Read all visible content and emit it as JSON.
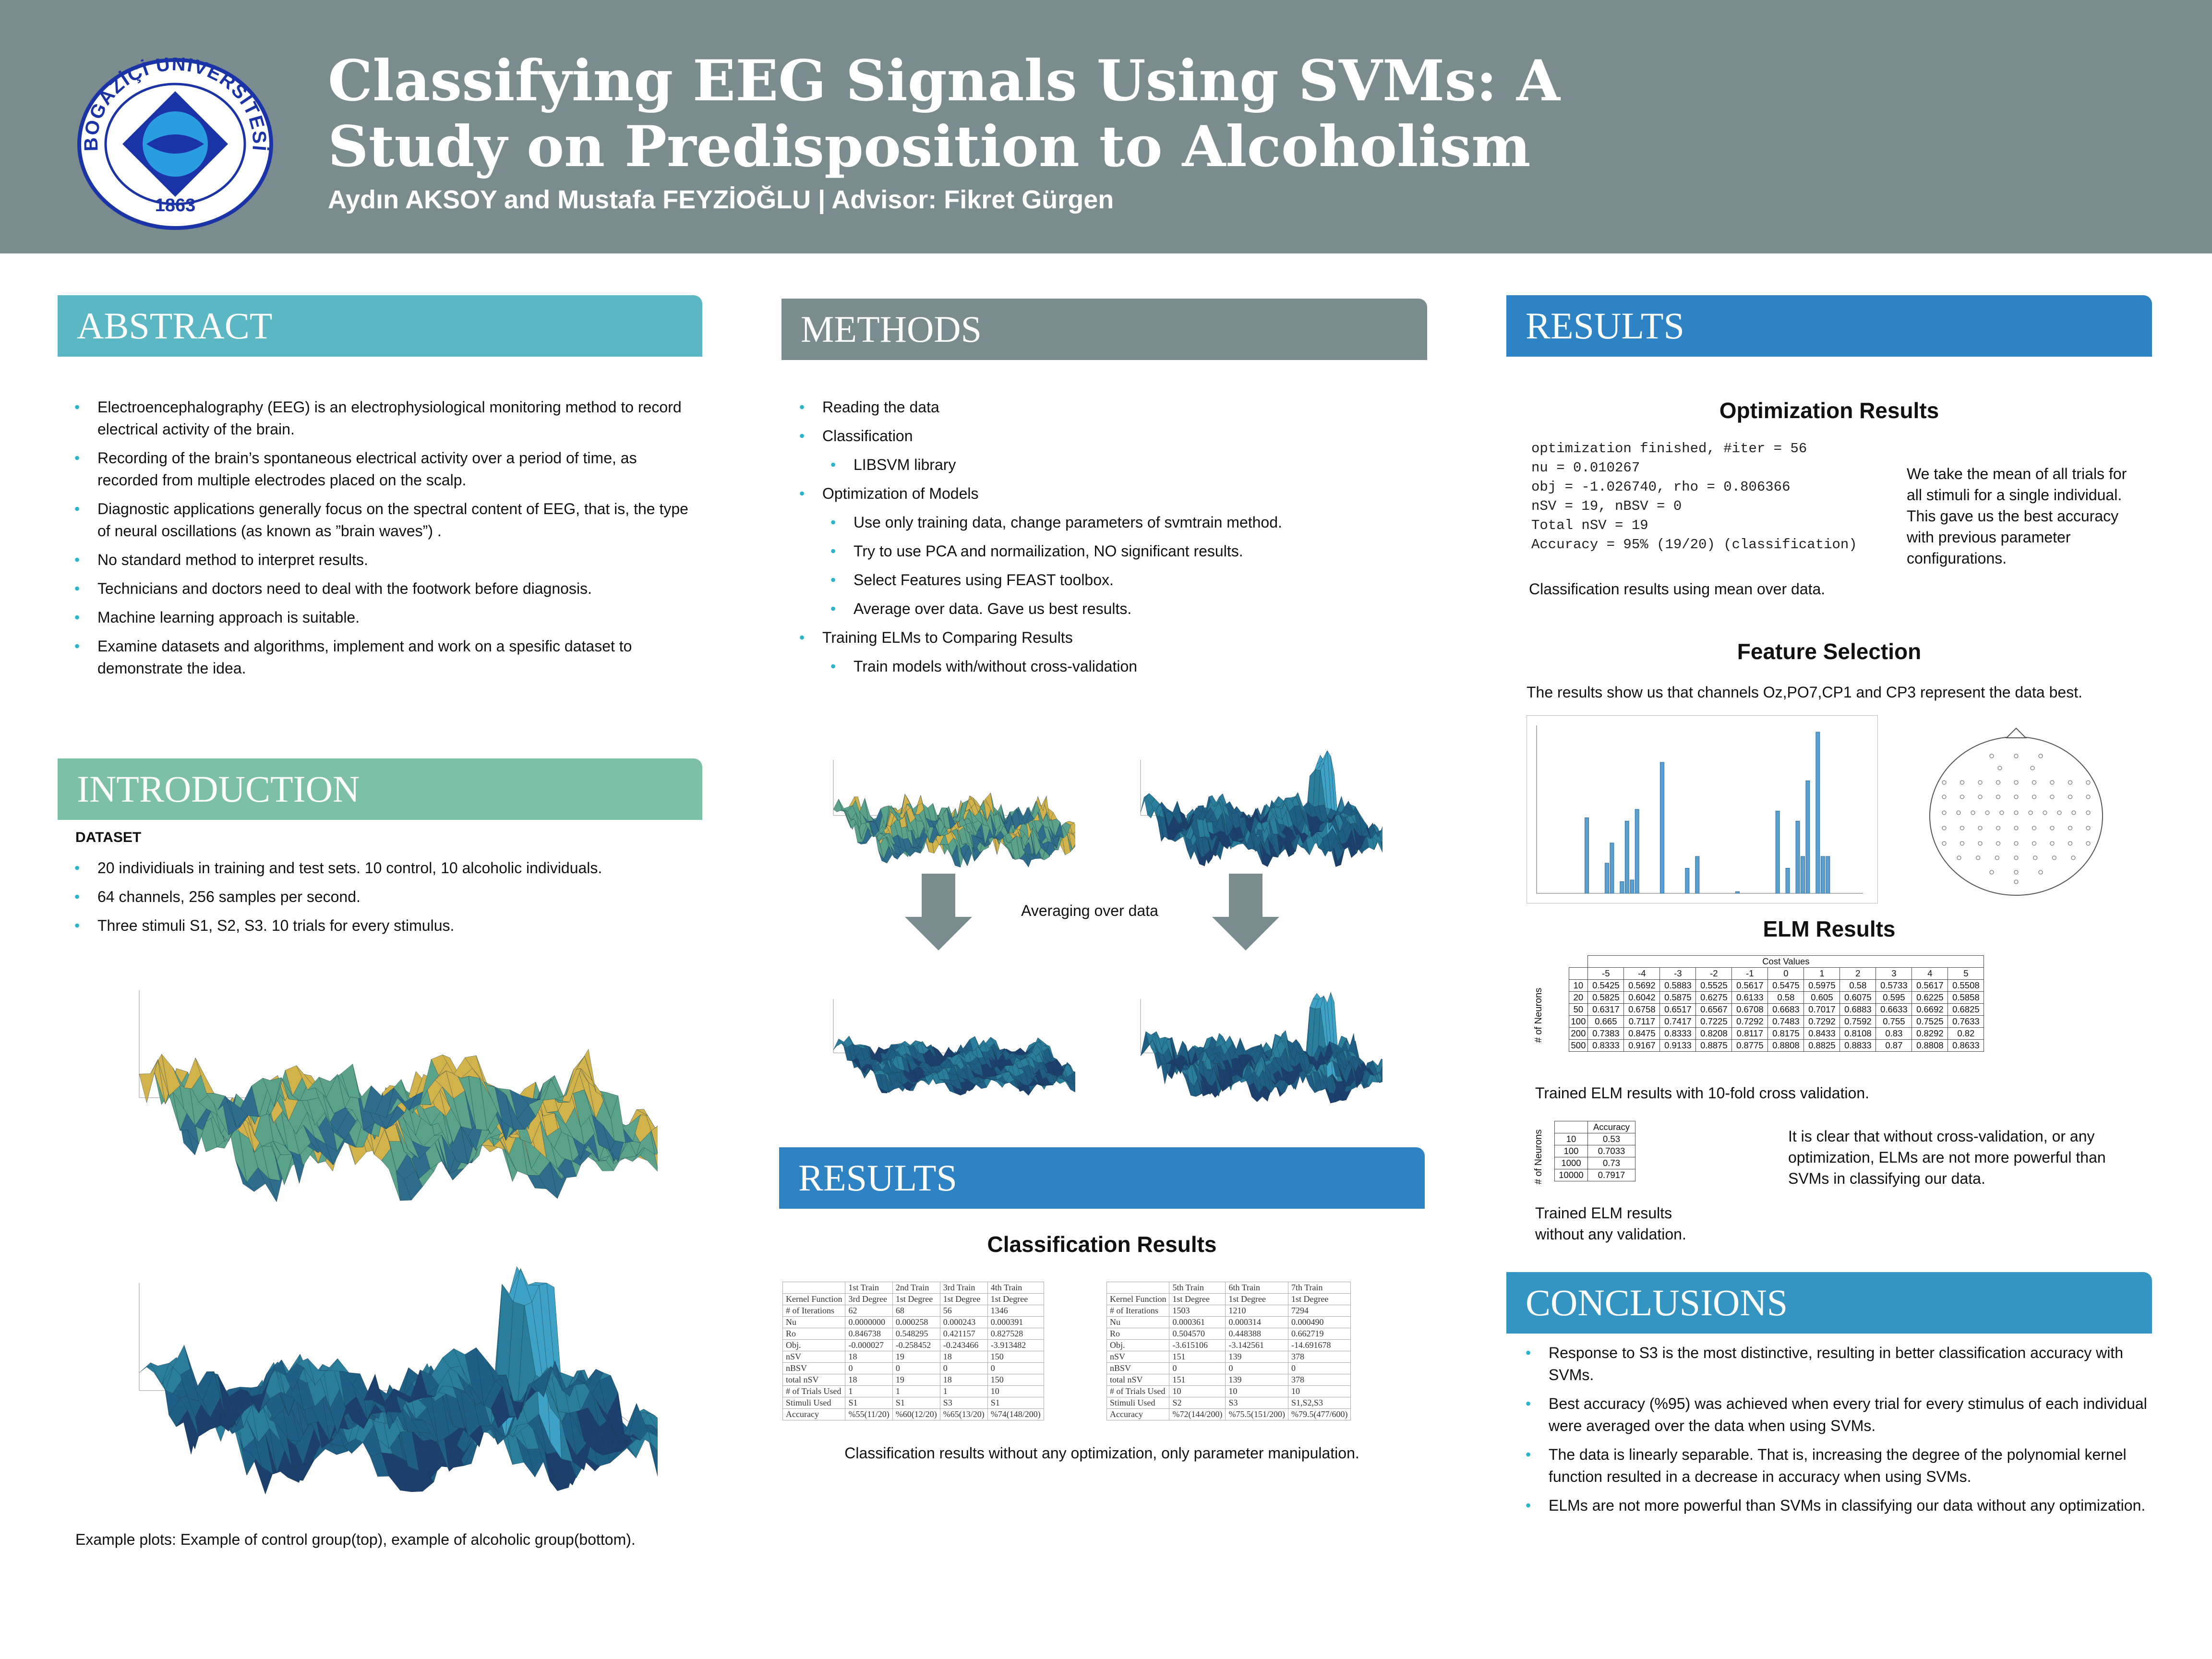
{
  "header": {
    "title": "Classifying EEG Signals Using SVMs: A Study on Predisposition to Alcoholism",
    "authors": "Aydın AKSOY and Mustafa FEYZİOĞLU | Advisor: Fikret Gürgen",
    "logo": {
      "text": "BOĞAZİÇİ ÜNİVERSİTESİ",
      "year": "1863"
    }
  },
  "colors": {
    "header": "#7b8c8e",
    "abstract": "#5ab7c3",
    "introduction": "#7cc0a6",
    "methods": "#7b8c8e",
    "results": "#2e83c4",
    "conclusions": "#3595c2",
    "bar": "#5b9fce"
  },
  "abstract": {
    "heading": "ABSTRACT",
    "items": [
      "Electroencephalography (EEG) is an electrophysiological monitoring method to record electrical activity of the brain.",
      "Recording of the brain’s spontaneous electrical activity over a period of time, as recorded from multiple electrodes placed on the scalp.",
      "Diagnostic applications generally focus on the spectral content of EEG, that is, the type of neural oscillations (as known as ”brain waves”) .",
      "No standard method to interpret results.",
      "Technicians and doctors need to deal with the footwork before diagnosis.",
      "Machine learning approach is suitable.",
      "Examine datasets and algorithms, implement and work on a spesific dataset to demonstrate the idea."
    ]
  },
  "introduction": {
    "heading": "INTRODUCTION",
    "dataset_label": "DATASET",
    "items": [
      "20 individiuals in training and test sets. 10 control, 10 alcoholic individuals.",
      "64 channels, 256 samples per second.",
      "Three stimuli S1, S2, S3. 10 trials for every stimulus."
    ],
    "caption": "Example plots: Example of control group(top), example of alcoholic group(bottom)."
  },
  "methods": {
    "heading": "METHODS",
    "items": [
      {
        "text": "Reading the data",
        "sub": false
      },
      {
        "text": "Classification",
        "sub": false
      },
      {
        "text": "LIBSVM library",
        "sub": true
      },
      {
        "text": "Optimization of Models",
        "sub": false
      },
      {
        "text": "Use only training data, change parameters of svmtrain method.",
        "sub": true
      },
      {
        "text": "Try to use PCA and normailization, NO significant results.",
        "sub": true
      },
      {
        "text": "Select Features using FEAST toolbox.",
        "sub": true
      },
      {
        "text": "Average over data. Gave us best results.",
        "sub": true
      },
      {
        "text": "Training ELMs to Comparing Results",
        "sub": false
      },
      {
        "text": "Train models with/without cross-validation",
        "sub": true
      }
    ],
    "averaging_label": "Averaging over data"
  },
  "results_mid": {
    "heading": "RESULTS",
    "classification_title": "Classification Results",
    "classification_caption": "Classification results without any optimization, only parameter manipulation.",
    "table_left": [
      [
        "",
        "1st Train",
        "2nd Train",
        "3rd Train",
        "4th Train"
      ],
      [
        "Kernel Function",
        "3rd Degree",
        "1st Degree",
        "1st Degree",
        "1st Degree"
      ],
      [
        "# of Iterations",
        "62",
        "68",
        "56",
        "1346"
      ],
      [
        "Nu",
        "0.0000000",
        "0.000258",
        "0.000243",
        "0.000391"
      ],
      [
        "Ro",
        "0.846738",
        "0.548295",
        "0.421157",
        "0.827528"
      ],
      [
        "Obj.",
        "-0.000027",
        "-0.258452",
        "-0.243466",
        "-3.913482"
      ],
      [
        "nSV",
        "18",
        "19",
        "18",
        "150"
      ],
      [
        "nBSV",
        "0",
        "0",
        "0",
        "0"
      ],
      [
        "total nSV",
        "18",
        "19",
        "18",
        "150"
      ],
      [
        "# of Trials Used",
        "1",
        "1",
        "1",
        "10"
      ],
      [
        "Stimuli Used",
        "S1",
        "S1",
        "S3",
        "S1"
      ],
      [
        "Accuracy",
        "%55(11/20)",
        "%60(12/20)",
        "%65(13/20)",
        "%74(148/200)"
      ]
    ],
    "table_right": [
      [
        "",
        "5th Train",
        "6th Train",
        "7th Train"
      ],
      [
        "Kernel Function",
        "1st Degree",
        "1st Degree",
        "1st Degree"
      ],
      [
        "# of Iterations",
        "1503",
        "1210",
        "7294"
      ],
      [
        "Nu",
        "0.000361",
        "0.000314",
        "0.000490"
      ],
      [
        "Ro",
        "0.504570",
        "0.448388",
        "0.662719"
      ],
      [
        "Obj.",
        "-3.615106",
        "-3.142561",
        "-14.691678"
      ],
      [
        "nSV",
        "151",
        "139",
        "378"
      ],
      [
        "nBSV",
        "0",
        "0",
        "0"
      ],
      [
        "total nSV",
        "151",
        "139",
        "378"
      ],
      [
        "# of Trials Used",
        "10",
        "10",
        "10"
      ],
      [
        "Stimuli Used",
        "S2",
        "S3",
        "S1,S2,S3"
      ],
      [
        "Accuracy",
        "%72(144/200)",
        "%75.5(151/200)",
        "%79.5(477/600)"
      ]
    ]
  },
  "results_right": {
    "heading": "RESULTS",
    "optimization_title": "Optimization Results",
    "optimization_output": [
      "optimization finished, #iter = 56",
      "nu = 0.010267",
      "obj = -1.026740, rho = 0.806366",
      "nSV = 19, nBSV = 0",
      "Total nSV = 19",
      "Accuracy = 95% (19/20) (classification)"
    ],
    "optimization_note": "We take the mean of all trials for all stimuli for a single individual.  This gave us the best accuracy with previous parameter configurations.",
    "optimization_caption": "Classification results using mean over data.",
    "feature_title": "Feature Selection",
    "feature_text": "The results show us that channels Oz,PO7,CP1 and CP3 represent the data best.",
    "elm_title": "ELM Results",
    "elm_cost_label": "Cost Values",
    "elm_neurons_label": "# of Neurons",
    "elm_costs": [
      "-5",
      "-4",
      "-3",
      "-2",
      "-1",
      "0",
      "1",
      "2",
      "3",
      "4",
      "5"
    ],
    "elm_rows": [
      {
        "neurons": "10",
        "values": [
          "0.5425",
          "0.5692",
          "0.5883",
          "0.5525",
          "0.5617",
          "0.5475",
          "0.5975",
          "0.58",
          "0.5733",
          "0.5617",
          "0.5508"
        ]
      },
      {
        "neurons": "20",
        "values": [
          "0.5825",
          "0.6042",
          "0.5875",
          "0.6275",
          "0.6133",
          "0.58",
          "0.605",
          "0.6075",
          "0.595",
          "0.6225",
          "0.5858"
        ]
      },
      {
        "neurons": "50",
        "values": [
          "0.6317",
          "0.6758",
          "0.6517",
          "0.6567",
          "0.6708",
          "0.6683",
          "0.7017",
          "0.6883",
          "0.6633",
          "0.6692",
          "0.6825"
        ]
      },
      {
        "neurons": "100",
        "values": [
          "0.665",
          "0.7117",
          "0.7417",
          "0.7225",
          "0.7292",
          "0.7483",
          "0.7292",
          "0.7592",
          "0.755",
          "0.7525",
          "0.7633"
        ]
      },
      {
        "neurons": "200",
        "values": [
          "0.7383",
          "0.8475",
          "0.8333",
          "0.8208",
          "0.8117",
          "0.8175",
          "0.8433",
          "0.8108",
          "0.83",
          "0.8292",
          "0.82"
        ]
      },
      {
        "neurons": "500",
        "values": [
          "0.8333",
          "0.9167",
          "0.9133",
          "0.8875",
          "0.8775",
          "0.8808",
          "0.8825",
          "0.8833",
          "0.87",
          "0.8808",
          "0.8633"
        ]
      }
    ],
    "elm_caption1": "Trained ELM results with 10-fold cross validation.",
    "elm2_header": "Accuracy",
    "elm2_rows": [
      [
        "10",
        "0.53"
      ],
      [
        "100",
        "0.7033"
      ],
      [
        "1000",
        "0.73"
      ],
      [
        "10000",
        "0.7917"
      ]
    ],
    "elm_caption2": "Trained ELM results without any validation.",
    "elm_note": "It is clear that without cross-validation, or any optimization, ELMs are not more powerful than SVMs in classifying our data."
  },
  "conclusions": {
    "heading": "CONCLUSIONS",
    "items": [
      "Response to S3 is the most distinctive, resulting in better classification accuracy with SVMs.",
      "Best accuracy (%95) was achieved when every trial for every stimulus of each individual were averaged over the data when using SVMs.",
      "The data is linearly separable. That is, increasing the degree of the polynomial kernel function resulted in a decrease in accuracy when using SVMs.",
      "ELMs are not more powerful than SVMs in classifying our data without any optimization."
    ]
  },
  "chart_data": [
    {
      "type": "bar",
      "xlim": [
        0,
        65
      ],
      "ylim": [
        0,
        1
      ],
      "x": [
        10,
        14,
        15,
        17,
        18,
        19,
        20,
        25,
        30,
        32,
        40,
        48,
        50,
        52,
        53,
        54,
        56,
        57,
        58
      ],
      "values": [
        0.45,
        0.18,
        0.3,
        0.07,
        0.43,
        0.08,
        0.5,
        0.78,
        0.15,
        0.22,
        0.01,
        0.49,
        0.15,
        0.43,
        0.22,
        0.67,
        0.96,
        0.22,
        0.22
      ]
    }
  ]
}
